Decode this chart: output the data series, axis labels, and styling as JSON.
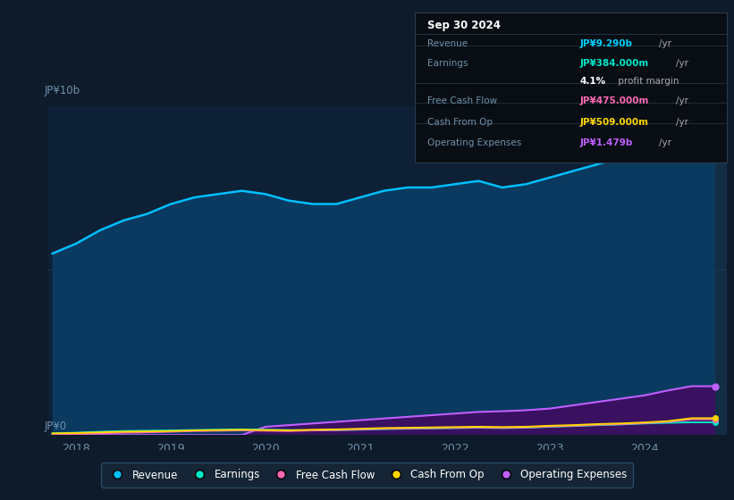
{
  "bg_color": "#0d1b2a",
  "plot_bg_color": "#0d2035",
  "grid_color": "#1e3a50",
  "title_box_date": "Sep 30 2024",
  "title_box_rows": [
    {
      "label": "Revenue",
      "value": "JP¥9.290b",
      "unit": "/yr",
      "color": "#00cfff"
    },
    {
      "label": "Earnings",
      "value": "JP¥384.000m",
      "unit": "/yr",
      "color": "#00e8c8"
    },
    {
      "label": "",
      "value": "4.1%",
      "unit": " profit margin",
      "color": "#ffffff"
    },
    {
      "label": "Free Cash Flow",
      "value": "JP¥475.000m",
      "unit": "/yr",
      "color": "#ff69b4"
    },
    {
      "label": "Cash From Op",
      "value": "JP¥509.000m",
      "unit": "/yr",
      "color": "#ffd700"
    },
    {
      "label": "Operating Expenses",
      "value": "JP¥1.479b",
      "unit": "/yr",
      "color": "#bf5fff"
    }
  ],
  "ylabel": "JP¥10b",
  "ylabel0": "JP¥0",
  "years": [
    2017.75,
    2018.0,
    2018.25,
    2018.5,
    2018.75,
    2019.0,
    2019.25,
    2019.5,
    2019.75,
    2020.0,
    2020.25,
    2020.5,
    2020.75,
    2021.0,
    2021.25,
    2021.5,
    2021.75,
    2022.0,
    2022.25,
    2022.5,
    2022.75,
    2023.0,
    2023.25,
    2023.5,
    2023.75,
    2024.0,
    2024.25,
    2024.5,
    2024.75
  ],
  "revenue": [
    5.5,
    5.8,
    6.2,
    6.5,
    6.7,
    7.0,
    7.2,
    7.3,
    7.4,
    7.3,
    7.1,
    7.0,
    7.0,
    7.2,
    7.4,
    7.5,
    7.5,
    7.6,
    7.7,
    7.5,
    7.6,
    7.8,
    8.0,
    8.2,
    8.4,
    8.8,
    9.1,
    9.29,
    9.29
  ],
  "earnings": [
    0.05,
    0.07,
    0.1,
    0.12,
    0.13,
    0.14,
    0.15,
    0.16,
    0.17,
    0.16,
    0.15,
    0.14,
    0.15,
    0.16,
    0.18,
    0.19,
    0.2,
    0.21,
    0.22,
    0.21,
    0.22,
    0.25,
    0.27,
    0.3,
    0.32,
    0.35,
    0.37,
    0.384,
    0.384
  ],
  "free_cash_flow": [
    0.02,
    0.03,
    0.05,
    0.07,
    0.08,
    0.1,
    0.12,
    0.13,
    0.14,
    0.13,
    0.12,
    0.14,
    0.15,
    0.17,
    0.19,
    0.2,
    0.21,
    0.22,
    0.23,
    0.22,
    0.23,
    0.26,
    0.28,
    0.31,
    0.33,
    0.36,
    0.4,
    0.475,
    0.475
  ],
  "cash_from_op": [
    0.05,
    0.06,
    0.08,
    0.1,
    0.11,
    0.12,
    0.14,
    0.15,
    0.16,
    0.15,
    0.14,
    0.16,
    0.17,
    0.19,
    0.21,
    0.22,
    0.23,
    0.24,
    0.25,
    0.24,
    0.25,
    0.28,
    0.3,
    0.33,
    0.35,
    0.38,
    0.42,
    0.509,
    0.509
  ],
  "op_expenses": [
    0.0,
    0.0,
    0.0,
    0.0,
    0.0,
    0.0,
    0.0,
    0.0,
    0.0,
    0.25,
    0.3,
    0.35,
    0.4,
    0.45,
    0.5,
    0.55,
    0.6,
    0.65,
    0.7,
    0.72,
    0.75,
    0.8,
    0.9,
    1.0,
    1.1,
    1.2,
    1.35,
    1.479,
    1.479
  ],
  "revenue_color": "#00bfff",
  "earnings_color": "#00e8c8",
  "fcf_color": "#ff69b4",
  "cashop_color": "#ffd700",
  "opex_color": "#bf5fff",
  "revenue_fill": "#0a3a60",
  "opex_fill": "#3a1060",
  "xticks": [
    2018,
    2019,
    2020,
    2021,
    2022,
    2023,
    2024
  ],
  "ylim": [
    0,
    10
  ],
  "vertical_line_x": 2023.75,
  "legend_labels": [
    "Revenue",
    "Earnings",
    "Free Cash Flow",
    "Cash From Op",
    "Operating Expenses"
  ],
  "legend_colors": [
    "#00bfff",
    "#00e8c8",
    "#ff69b4",
    "#ffd700",
    "#bf5fff"
  ]
}
